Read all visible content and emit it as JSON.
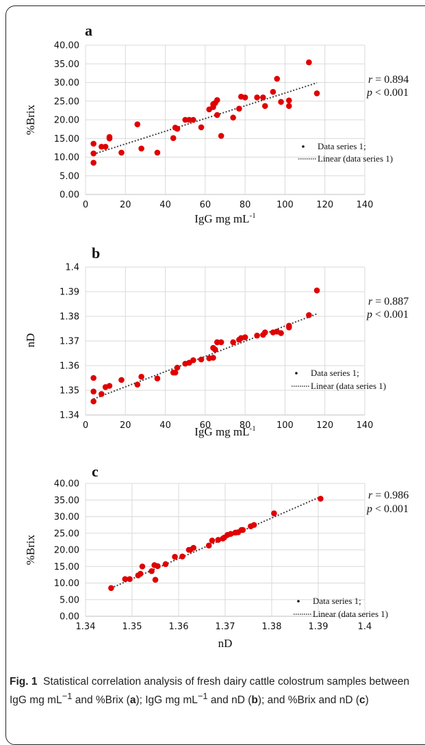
{
  "chart_data": [
    {
      "type": "scatter",
      "panel_label": "a",
      "xlabel": "IgG mg mL",
      "xlabel_sup": "-1",
      "ylabel": "%Brix",
      "xlim": [
        0,
        140
      ],
      "ylim": [
        0,
        40
      ],
      "xticks": [
        "0",
        "20",
        "40",
        "60",
        "80",
        "100",
        "120",
        "140"
      ],
      "yticks": [
        "0.00",
        "5.00",
        "10.00",
        "15.00",
        "20.00",
        "25.00",
        "30.00",
        "35.00",
        "40.00"
      ],
      "grid": true,
      "r_text": "r = 0.894",
      "p_text": "p < 0.001",
      "legend": [
        "Data series 1;",
        "Linear (data series 1)"
      ],
      "legend_position": "right",
      "marker_color": "#e00000",
      "trend_color": "#404040",
      "trend": {
        "x": [
          4,
          116
        ],
        "y": [
          10.8,
          29.9
        ]
      },
      "points": {
        "x": [
          4,
          4,
          4,
          8,
          10,
          12,
          12,
          18,
          26,
          28,
          36,
          44,
          45,
          46,
          50,
          52,
          54,
          58,
          62,
          64,
          64,
          65,
          66,
          66,
          68,
          74,
          77,
          78,
          80,
          86,
          89,
          90,
          94,
          96,
          98,
          102,
          102,
          112,
          116
        ],
        "y": [
          13.6,
          11.0,
          8.5,
          12.8,
          12.8,
          15.0,
          15.4,
          11.2,
          18.8,
          12.3,
          11.2,
          15.1,
          17.9,
          17.6,
          20.0,
          20.0,
          20.0,
          18.0,
          22.8,
          23.4,
          24.2,
          24.5,
          25.3,
          21.3,
          15.7,
          20.6,
          23.0,
          26.2,
          26.0,
          26.0,
          26.0,
          23.7,
          27.5,
          31.0,
          24.8,
          25.2,
          23.7,
          35.4,
          27.1
        ]
      }
    },
    {
      "type": "scatter",
      "panel_label": "b",
      "xlabel": "IgG mg mL",
      "xlabel_sup": "-1",
      "ylabel": "nD",
      "xlim": [
        0,
        140
      ],
      "ylim": [
        1.34,
        1.4
      ],
      "xticks": [
        "0",
        "20",
        "40",
        "60",
        "80",
        "100",
        "120",
        "140"
      ],
      "yticks": [
        "1.34",
        "1.35",
        "1.36",
        "1.37",
        "1.38",
        "1.39",
        "1.4"
      ],
      "grid": true,
      "r_text": "r = 0.887",
      "p_text": "p < 0.001",
      "legend": [
        "Data series 1;",
        "Linear (data series 1)"
      ],
      "legend_position": "right",
      "marker_color": "#e00000",
      "trend_color": "#404040",
      "trend": {
        "x": [
          4,
          116
        ],
        "y": [
          1.3465,
          1.381
        ]
      },
      "points": {
        "x": [
          4,
          4,
          4,
          8,
          10,
          12,
          18,
          26,
          28,
          36,
          44,
          45,
          46,
          50,
          52,
          54,
          58,
          62,
          64,
          64,
          65,
          66,
          66,
          68,
          74,
          77,
          78,
          80,
          86,
          89,
          90,
          94,
          96,
          98,
          102,
          102,
          112,
          116
        ],
        "y": [
          1.355,
          1.3495,
          1.3455,
          1.3485,
          1.3513,
          1.3518,
          1.3542,
          1.3523,
          1.3555,
          1.3548,
          1.3572,
          1.3572,
          1.3592,
          1.3608,
          1.3612,
          1.3622,
          1.3625,
          1.363,
          1.3632,
          1.3672,
          1.3665,
          1.3695,
          1.3695,
          1.3695,
          1.3695,
          1.3705,
          1.3712,
          1.3715,
          1.3722,
          1.3725,
          1.3735,
          1.3735,
          1.3738,
          1.3732,
          1.3755,
          1.3762,
          1.3805,
          1.3905
        ]
      }
    },
    {
      "type": "scatter",
      "panel_label": "c",
      "xlabel": "nD",
      "xlabel_sup": "",
      "ylabel": "%Brix",
      "xlim": [
        1.34,
        1.4
      ],
      "ylim": [
        0,
        40
      ],
      "xticks": [
        "1.34",
        "1.35",
        "1.36",
        "1.37",
        "1.38",
        "1.39",
        "1.4"
      ],
      "yticks": [
        "0.00",
        "5.00",
        "10.00",
        "15.00",
        "20.00",
        "25.00",
        "30.00",
        "35.00",
        "40.00"
      ],
      "grid": true,
      "r_text": "r = 0.986",
      "p_text": "p < 0.001",
      "legend": [
        "Data series 1;",
        "Linear (data series 1)"
      ],
      "legend_position": "right",
      "marker_color": "#e00000",
      "trend_color": "#404040",
      "trend": {
        "x": [
          1.3455,
          1.3905
        ],
        "y": [
          8.5,
          36.0
        ]
      },
      "points": {
        "x": [
          1.3455,
          1.3485,
          1.3495,
          1.3513,
          1.3518,
          1.3522,
          1.3542,
          1.3548,
          1.355,
          1.3555,
          1.3572,
          1.3592,
          1.3608,
          1.3622,
          1.3625,
          1.3632,
          1.3665,
          1.3672,
          1.3685,
          1.3695,
          1.3698,
          1.3705,
          1.3712,
          1.3722,
          1.3728,
          1.3735,
          1.3738,
          1.3755,
          1.3762,
          1.3805,
          1.3905
        ],
        "y": [
          8.5,
          11.2,
          11.2,
          12.3,
          12.8,
          15.0,
          13.6,
          15.4,
          11.0,
          15.1,
          15.7,
          17.9,
          18.0,
          20.0,
          20.0,
          20.6,
          21.3,
          22.8,
          23.0,
          23.4,
          23.7,
          24.5,
          24.8,
          25.2,
          25.3,
          26.0,
          26.0,
          27.1,
          27.5,
          31.0,
          35.4
        ]
      }
    }
  ],
  "caption": {
    "fig_label": "Fig. 1",
    "part1": "Statistical correlation analysis of fresh dairy cattle colostrum samples between IgG mg mL",
    "sup1": "−1",
    "part2": " and %Brix (",
    "ref_a": "a",
    "part3": "); IgG mg mL",
    "sup2": "−1",
    "part4": " and nD (",
    "ref_b": "b",
    "part5": "); and  %Brix and nD (",
    "ref_c": "c",
    "part6": ")"
  }
}
